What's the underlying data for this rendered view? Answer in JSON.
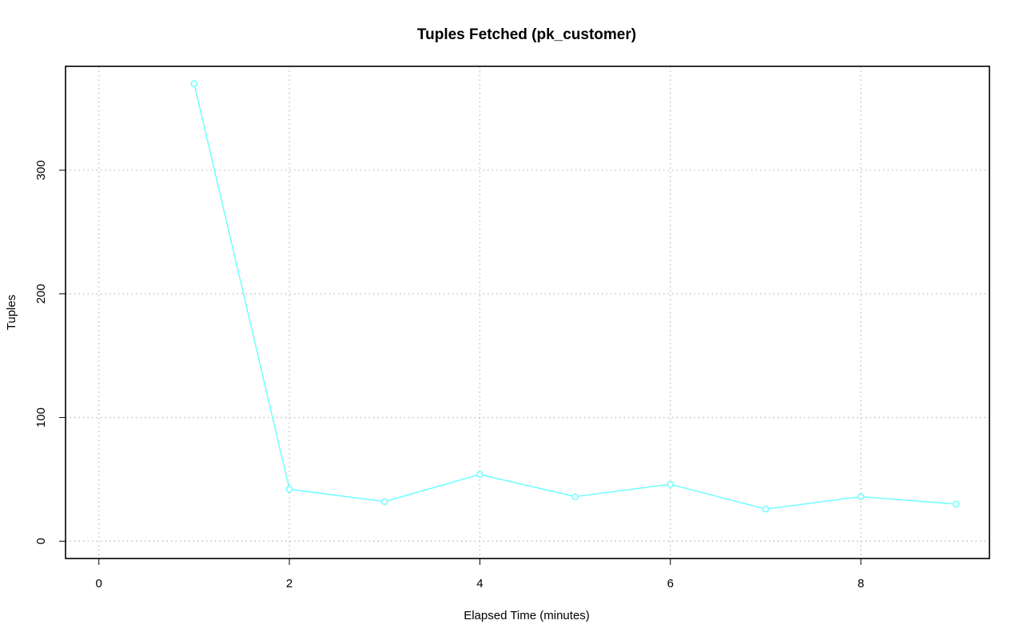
{
  "chart_data": {
    "type": "line",
    "title": "Tuples Fetched (pk_customer)",
    "xlabel": "Elapsed Time (minutes)",
    "ylabel": "Tuples",
    "xlim": [
      -0.35,
      9.35
    ],
    "ylim": [
      -14,
      384
    ],
    "x_ticks": [
      0,
      2,
      4,
      6,
      8
    ],
    "y_ticks": [
      0,
      100,
      200,
      300
    ],
    "grid": true,
    "series": [
      {
        "color": "#66ffff",
        "marker": "circle",
        "x": [
          1,
          2,
          3,
          4,
          5,
          6,
          7,
          8,
          9
        ],
        "values": [
          370,
          42,
          32,
          54,
          36,
          46,
          26,
          36,
          30
        ]
      }
    ]
  }
}
